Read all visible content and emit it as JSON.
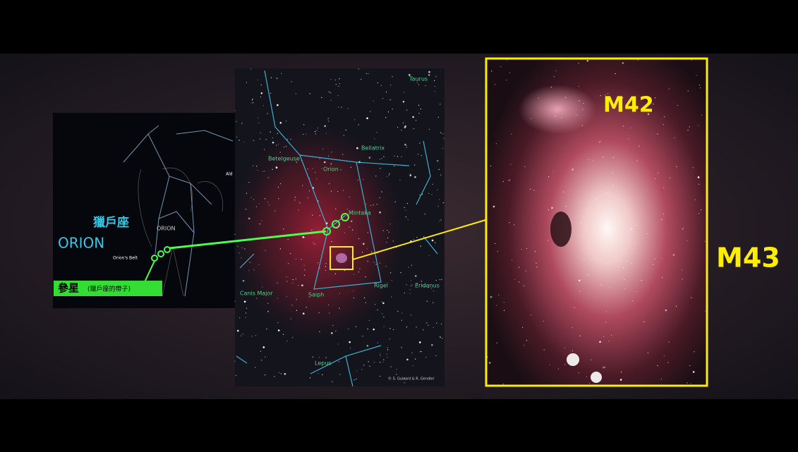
{
  "left_panel": {
    "title_cn": "獵戶座",
    "title_en": "ORION",
    "figure_label": "ORION",
    "belt_label": "Orion's Belt",
    "partial_label": "Ald",
    "caption_main": "參星",
    "caption_note": "(獵戶座的帶子)"
  },
  "star_map": {
    "labels": [
      "Taurus",
      "Orion",
      "Betelgeuse",
      "Bellatrix",
      "Mintaka",
      "Rigel",
      "Saiph",
      "Canis Major",
      "Eridanus",
      "Lepus"
    ],
    "credit": "© S. Guisard & R. Gendler"
  },
  "nebula": {
    "labels": [
      "M42",
      "M43"
    ]
  }
}
